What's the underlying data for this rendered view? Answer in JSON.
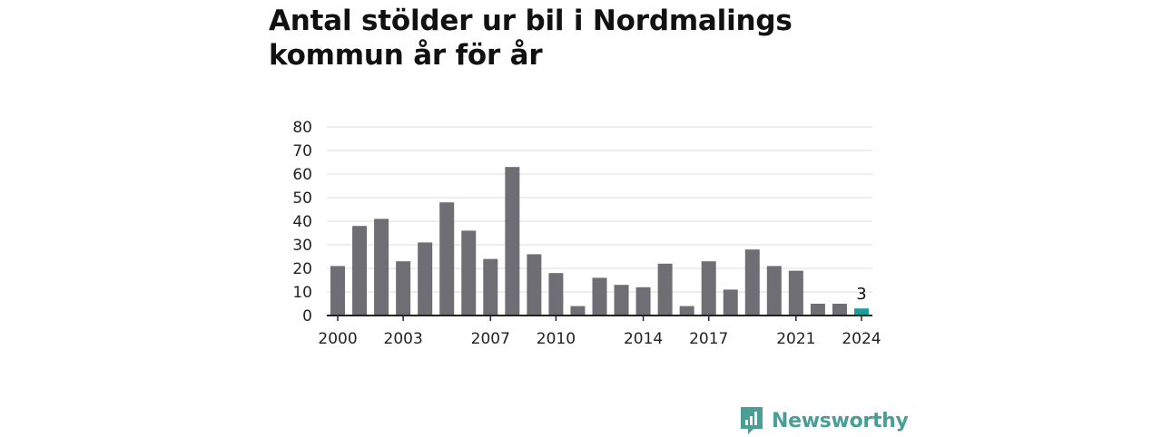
{
  "chart_data": {
    "type": "bar",
    "title": "Antal stölder ur bil i Nordmalings kommun år för år",
    "x": [
      2000,
      2001,
      2002,
      2003,
      2004,
      2005,
      2006,
      2007,
      2008,
      2009,
      2010,
      2011,
      2012,
      2013,
      2014,
      2015,
      2016,
      2017,
      2018,
      2019,
      2020,
      2021,
      2022,
      2023,
      2024
    ],
    "values": [
      21,
      38,
      41,
      23,
      31,
      48,
      36,
      24,
      63,
      26,
      18,
      4,
      16,
      13,
      12,
      22,
      4,
      23,
      11,
      28,
      21,
      19,
      5,
      5,
      3
    ],
    "x_tick_labels": [
      "2000",
      "2003",
      "2007",
      "2010",
      "2014",
      "2017",
      "2021",
      "2024"
    ],
    "y_ticks": [
      0,
      10,
      20,
      30,
      40,
      50,
      60,
      70,
      80
    ],
    "ylim": [
      0,
      80
    ],
    "xlabel": "",
    "ylabel": "",
    "grid": "horizontal",
    "annotations": [
      {
        "x": 2024,
        "text": "3"
      }
    ],
    "colors": {
      "bar": "#6f6e74",
      "highlight": "#1a9e97",
      "grid": "#dcdcdc",
      "axis": "#222222"
    }
  },
  "brand": {
    "name": "Newsworthy",
    "icon": "newsworthy-logo-icon",
    "color": "#4a9e96"
  }
}
